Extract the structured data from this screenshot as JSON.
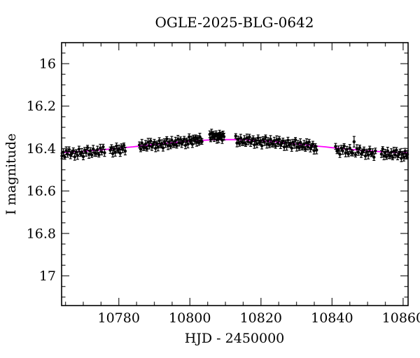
{
  "chart_data": {
    "type": "scatter",
    "title": "OGLE-2025-BLG-0642",
    "xlabel": "HJD - 2450000",
    "ylabel": "I magnitude",
    "x_range": [
      10763.9,
      10861.4
    ],
    "y_range_mag": [
      15.901,
      17.14
    ],
    "y_axis_inverted_magnitudes": true,
    "grid": false,
    "legend": "none",
    "point_color": "#000000",
    "model_color": "#ff00ff",
    "x_ticks": [
      {
        "v": 10780,
        "label": "10780"
      },
      {
        "v": 10800,
        "label": "10800"
      },
      {
        "v": 10820,
        "label": "10820"
      },
      {
        "v": 10840,
        "label": "10840"
      },
      {
        "v": 10860,
        "label": "10860"
      }
    ],
    "x_minor_step": 5,
    "y_ticks": [
      {
        "v": 16.0,
        "label": "16"
      },
      {
        "v": 16.2,
        "label": "16.2"
      },
      {
        "v": 16.4,
        "label": "16.4"
      },
      {
        "v": 16.6,
        "label": "16.6"
      },
      {
        "v": 16.8,
        "label": "16.8"
      },
      {
        "v": 17.0,
        "label": "17"
      }
    ],
    "y_minor_step": 0.05,
    "model_curve": [
      [
        10763.9,
        16.419
      ],
      [
        10766,
        16.417
      ],
      [
        10768,
        16.415
      ],
      [
        10770,
        16.413
      ],
      [
        10772,
        16.41
      ],
      [
        10774,
        16.408
      ],
      [
        10776,
        16.405
      ],
      [
        10778,
        16.402
      ],
      [
        10780,
        16.399
      ],
      [
        10782,
        16.395
      ],
      [
        10784,
        16.392
      ],
      [
        10786,
        16.388
      ],
      [
        10788,
        16.384
      ],
      [
        10790,
        16.381
      ],
      [
        10792,
        16.377
      ],
      [
        10794,
        16.374
      ],
      [
        10796,
        16.371
      ],
      [
        10798,
        16.368
      ],
      [
        10800,
        16.365
      ],
      [
        10802,
        16.363
      ],
      [
        10804,
        16.361
      ],
      [
        10806,
        16.359
      ],
      [
        10808,
        16.3585
      ],
      [
        10810,
        16.358
      ],
      [
        10812,
        16.358
      ],
      [
        10814,
        16.3585
      ],
      [
        10816,
        16.359
      ],
      [
        10818,
        16.361
      ],
      [
        10820,
        16.363
      ],
      [
        10822,
        16.366
      ],
      [
        10824,
        16.368
      ],
      [
        10826,
        16.371
      ],
      [
        10828,
        16.375
      ],
      [
        10830,
        16.378
      ],
      [
        10832,
        16.382
      ],
      [
        10834,
        16.385
      ],
      [
        10836,
        16.389
      ],
      [
        10838,
        16.392
      ],
      [
        10840,
        16.396
      ],
      [
        10842,
        16.399
      ],
      [
        10844,
        16.402
      ],
      [
        10846,
        16.405
      ],
      [
        10848,
        16.408
      ],
      [
        10850,
        16.411
      ],
      [
        10852,
        16.413
      ],
      [
        10854,
        16.415
      ],
      [
        10856,
        16.417
      ],
      [
        10858,
        16.419
      ],
      [
        10860,
        16.42
      ],
      [
        10861.4,
        16.421
      ]
    ],
    "points": [
      [
        10764.0,
        16.435,
        0.013
      ],
      [
        10764.4,
        16.417,
        0.016
      ],
      [
        10764.8,
        16.44,
        0.011
      ],
      [
        10765.2,
        16.41,
        0.018
      ],
      [
        10765.6,
        16.427,
        0.014
      ],
      [
        10766.0,
        16.404,
        0.012
      ],
      [
        10766.4,
        16.431,
        0.017
      ],
      [
        10766.8,
        16.423,
        0.015
      ],
      [
        10767.2,
        16.41,
        0.013
      ],
      [
        10767.6,
        16.439,
        0.016
      ],
      [
        10768.0,
        16.416,
        0.011
      ],
      [
        10768.4,
        16.433,
        0.018
      ],
      [
        10768.8,
        16.403,
        0.014
      ],
      [
        10769.2,
        16.425,
        0.012
      ],
      [
        10769.6,
        16.417,
        0.017
      ],
      [
        10770.0,
        16.438,
        0.015
      ],
      [
        10770.4,
        16.408,
        0.013
      ],
      [
        10770.8,
        16.42,
        0.016
      ],
      [
        10771.2,
        16.396,
        0.011
      ],
      [
        10771.6,
        16.428,
        0.018
      ],
      [
        10772.0,
        16.41,
        0.014
      ],
      [
        10772.4,
        16.43,
        0.012
      ],
      [
        10772.8,
        16.402,
        0.017
      ],
      [
        10773.2,
        16.421,
        0.015
      ],
      [
        10773.6,
        16.424,
        0.013
      ],
      [
        10774.0,
        16.405,
        0.016
      ],
      [
        10774.4,
        16.429,
        0.011
      ],
      [
        10774.8,
        16.398,
        0.018
      ],
      [
        10775.2,
        16.416,
        0.014
      ],
      [
        10775.6,
        16.392,
        0.012
      ],
      [
        10776.0,
        16.42,
        0.017
      ],
      [
        10777.6,
        16.408,
        0.015
      ],
      [
        10777.95,
        16.395,
        0.013
      ],
      [
        10778.3,
        16.424,
        0.016
      ],
      [
        10778.65,
        16.401,
        0.011
      ],
      [
        10779.0,
        16.418,
        0.018
      ],
      [
        10779.35,
        16.388,
        0.014
      ],
      [
        10779.7,
        16.409,
        0.012
      ],
      [
        10780.05,
        16.401,
        0.017
      ],
      [
        10780.4,
        16.422,
        0.015
      ],
      [
        10780.75,
        16.391,
        0.013
      ],
      [
        10781.1,
        16.404,
        0.016
      ],
      [
        10781.45,
        16.385,
        0.011
      ],
      [
        10781.8,
        16.412,
        0.018
      ],
      [
        10785.8,
        16.383,
        0.014
      ],
      [
        10786.15,
        16.403,
        0.012
      ],
      [
        10786.5,
        16.374,
        0.017
      ],
      [
        10786.85,
        16.394,
        0.015
      ],
      [
        10787.2,
        16.396,
        0.013
      ],
      [
        10787.55,
        16.378,
        0.016
      ],
      [
        10787.9,
        16.401,
        0.011
      ],
      [
        10788.25,
        16.37,
        0.018
      ],
      [
        10788.6,
        16.388,
        0.014
      ],
      [
        10788.95,
        16.364,
        0.012
      ],
      [
        10789.3,
        16.392,
        0.017
      ],
      [
        10789.65,
        16.383,
        0.015
      ],
      [
        10790.0,
        16.37,
        0.013
      ],
      [
        10790.35,
        16.399,
        0.016
      ],
      [
        10790.7,
        16.376,
        0.011
      ],
      [
        10791.05,
        16.393,
        0.018
      ],
      [
        10791.4,
        16.363,
        0.014
      ],
      [
        10791.75,
        16.385,
        0.012
      ],
      [
        10792.1,
        16.376,
        0.017
      ],
      [
        10792.45,
        16.397,
        0.015
      ],
      [
        10792.8,
        16.367,
        0.013
      ],
      [
        10793.15,
        16.379,
        0.016
      ],
      [
        10793.5,
        16.355,
        0.011
      ],
      [
        10793.85,
        16.387,
        0.018
      ],
      [
        10794.2,
        16.368,
        0.014
      ],
      [
        10794.55,
        16.389,
        0.012
      ],
      [
        10794.9,
        16.36,
        0.017
      ],
      [
        10795.25,
        16.38,
        0.015
      ],
      [
        10795.6,
        16.382,
        0.013
      ],
      [
        10795.95,
        16.363,
        0.016
      ],
      [
        10796.3,
        16.387,
        0.011
      ],
      [
        10796.65,
        16.356,
        0.018
      ],
      [
        10797.0,
        16.374,
        0.014
      ],
      [
        10797.35,
        16.357,
        0.012
      ],
      [
        10797.7,
        16.378,
        0.017
      ],
      [
        10798.05,
        16.369,
        0.015
      ],
      [
        10798.4,
        16.356,
        0.013
      ],
      [
        10798.75,
        16.385,
        0.016
      ],
      [
        10799.1,
        16.362,
        0.011
      ],
      [
        10799.45,
        16.379,
        0.018
      ],
      [
        10799.8,
        16.345,
        0.014
      ],
      [
        10800.1,
        16.367,
        0.012
      ],
      [
        10800.4,
        16.359,
        0.017
      ],
      [
        10800.7,
        16.38,
        0.015
      ],
      [
        10801.0,
        16.35,
        0.013
      ],
      [
        10801.3,
        16.363,
        0.016
      ],
      [
        10801.6,
        16.347,
        0.011
      ],
      [
        10801.9,
        16.371,
        0.018
      ],
      [
        10802.2,
        16.353,
        0.014
      ],
      [
        10802.5,
        16.373,
        0.012
      ],
      [
        10802.8,
        16.345,
        0.017
      ],
      [
        10803.1,
        16.365,
        0.015
      ],
      [
        10803.4,
        16.367,
        0.013
      ],
      [
        10805.6,
        16.333,
        0.016
      ],
      [
        10805.85,
        16.357,
        0.011
      ],
      [
        10806.1,
        16.327,
        0.018
      ],
      [
        10806.35,
        16.345,
        0.014
      ],
      [
        10806.6,
        16.331,
        0.012
      ],
      [
        10806.85,
        16.35,
        0.017
      ],
      [
        10807.1,
        16.342,
        0.015
      ],
      [
        10807.35,
        16.33,
        0.013
      ],
      [
        10807.6,
        16.359,
        0.016
      ],
      [
        10807.85,
        16.337,
        0.011
      ],
      [
        10808.1,
        16.354,
        0.018
      ],
      [
        10808.35,
        16.328,
        0.014
      ],
      [
        10808.6,
        16.347,
        0.012
      ],
      [
        10808.85,
        16.339,
        0.017
      ],
      [
        10809.1,
        16.361,
        0.015
      ],
      [
        10809.35,
        16.331,
        0.013
      ],
      [
        10809.6,
        16.344,
        0.016
      ],
      [
        10812.9,
        16.341,
        0.011
      ],
      [
        10813.25,
        16.374,
        0.018
      ],
      [
        10813.6,
        16.356,
        0.014
      ],
      [
        10813.95,
        16.377,
        0.012
      ],
      [
        10814.3,
        16.35,
        0.017
      ],
      [
        10814.65,
        16.37,
        0.015
      ],
      [
        10815.0,
        16.373,
        0.013
      ],
      [
        10815.35,
        16.355,
        0.016
      ],
      [
        10815.7,
        16.379,
        0.011
      ],
      [
        10816.05,
        16.35,
        0.018
      ],
      [
        10816.4,
        16.368,
        0.014
      ],
      [
        10816.75,
        16.345,
        0.012
      ],
      [
        10817.1,
        16.373,
        0.017
      ],
      [
        10817.45,
        16.365,
        0.015
      ],
      [
        10817.8,
        16.353,
        0.013
      ],
      [
        10818.15,
        16.383,
        0.016
      ],
      [
        10818.5,
        16.361,
        0.011
      ],
      [
        10818.85,
        16.378,
        0.018
      ],
      [
        10819.2,
        16.35,
        0.014
      ],
      [
        10819.55,
        16.372,
        0.012
      ],
      [
        10819.9,
        16.364,
        0.017
      ],
      [
        10820.25,
        16.387,
        0.015
      ],
      [
        10820.6,
        16.357,
        0.013
      ],
      [
        10820.95,
        16.37,
        0.016
      ],
      [
        10821.3,
        16.347,
        0.011
      ],
      [
        10821.65,
        16.38,
        0.018
      ],
      [
        10822.0,
        16.363,
        0.014
      ],
      [
        10822.35,
        16.384,
        0.012
      ],
      [
        10822.7,
        16.356,
        0.017
      ],
      [
        10823.05,
        16.377,
        0.015
      ],
      [
        10823.4,
        16.38,
        0.013
      ],
      [
        10823.75,
        16.363,
        0.016
      ],
      [
        10824.1,
        16.388,
        0.011
      ],
      [
        10824.45,
        16.358,
        0.018
      ],
      [
        10824.8,
        16.376,
        0.014
      ],
      [
        10825.15,
        16.355,
        0.012
      ],
      [
        10825.5,
        16.383,
        0.017
      ],
      [
        10825.85,
        16.375,
        0.015
      ],
      [
        10826.2,
        16.364,
        0.013
      ],
      [
        10826.55,
        16.393,
        0.016
      ],
      [
        10826.9,
        16.371,
        0.011
      ],
      [
        10827.25,
        16.39,
        0.018
      ],
      [
        10827.6,
        16.361,
        0.014
      ],
      [
        10827.95,
        16.383,
        0.012
      ],
      [
        10828.3,
        16.376,
        0.017
      ],
      [
        10828.65,
        16.398,
        0.015
      ],
      [
        10829.0,
        16.37,
        0.013
      ],
      [
        10829.35,
        16.383,
        0.016
      ],
      [
        10829.7,
        16.359,
        0.011
      ],
      [
        10830.05,
        16.394,
        0.018
      ],
      [
        10830.4,
        16.376,
        0.014
      ],
      [
        10830.75,
        16.397,
        0.012
      ],
      [
        10831.1,
        16.371,
        0.017
      ],
      [
        10831.45,
        16.391,
        0.015
      ],
      [
        10831.8,
        16.394,
        0.013
      ],
      [
        10832.15,
        16.378,
        0.016
      ],
      [
        10832.5,
        16.402,
        0.011
      ],
      [
        10832.85,
        16.372,
        0.018
      ],
      [
        10833.2,
        16.392,
        0.014
      ],
      [
        10833.55,
        16.369,
        0.012
      ],
      [
        10833.9,
        16.399,
        0.017
      ],
      [
        10834.25,
        16.391,
        0.015
      ],
      [
        10834.6,
        16.379,
        0.013
      ],
      [
        10834.95,
        16.41,
        0.016
      ],
      [
        10835.3,
        16.388,
        0.011
      ],
      [
        10835.65,
        16.407,
        0.018
      ],
      [
        10841.0,
        16.39,
        0.014
      ],
      [
        10841.4,
        16.412,
        0.012
      ],
      [
        10841.8,
        16.405,
        0.017
      ],
      [
        10842.2,
        16.427,
        0.015
      ],
      [
        10842.6,
        16.398,
        0.013
      ],
      [
        10843.0,
        16.411,
        0.016
      ],
      [
        10843.4,
        16.388,
        0.011
      ],
      [
        10843.8,
        16.421,
        0.018
      ],
      [
        10844.2,
        16.404,
        0.014
      ],
      [
        10844.6,
        16.426,
        0.012
      ],
      [
        10845.0,
        16.398,
        0.017
      ],
      [
        10845.4,
        16.419,
        0.015
      ],
      [
        10845.8,
        16.422,
        0.013
      ],
      [
        10846.2,
        16.368,
        0.025
      ],
      [
        10846.6,
        16.429,
        0.011
      ],
      [
        10847.0,
        16.4,
        0.018
      ],
      [
        10847.4,
        16.418,
        0.014
      ],
      [
        10847.8,
        16.396,
        0.012
      ],
      [
        10848.2,
        16.425,
        0.017
      ],
      [
        10848.6,
        16.417,
        0.015
      ],
      [
        10849.0,
        16.406,
        0.013
      ],
      [
        10849.4,
        16.435,
        0.016
      ],
      [
        10849.8,
        16.414,
        0.011
      ],
      [
        10850.2,
        16.431,
        0.018
      ],
      [
        10850.6,
        16.403,
        0.014
      ],
      [
        10851.0,
        16.426,
        0.012
      ],
      [
        10851.4,
        16.418,
        0.017
      ],
      [
        10851.8,
        16.441,
        0.015
      ],
      [
        10852.2,
        16.411,
        0.013
      ],
      [
        10853.9,
        16.426,
        0.016
      ],
      [
        10854.25,
        16.402,
        0.011
      ],
      [
        10854.6,
        16.435,
        0.018
      ],
      [
        10854.95,
        16.418,
        0.014
      ],
      [
        10855.3,
        16.439,
        0.012
      ],
      [
        10855.65,
        16.411,
        0.017
      ],
      [
        10856.0,
        16.432,
        0.015
      ],
      [
        10856.35,
        16.435,
        0.013
      ],
      [
        10856.7,
        16.417,
        0.016
      ],
      [
        10857.05,
        16.442,
        0.011
      ],
      [
        10857.4,
        16.412,
        0.018
      ],
      [
        10857.75,
        16.43,
        0.014
      ],
      [
        10858.1,
        16.407,
        0.012
      ],
      [
        10858.45,
        16.436,
        0.017
      ],
      [
        10858.8,
        16.428,
        0.015
      ],
      [
        10859.15,
        16.416,
        0.013
      ],
      [
        10859.5,
        16.446,
        0.016
      ],
      [
        10859.85,
        16.424,
        0.011
      ],
      [
        10860.2,
        16.441,
        0.018
      ],
      [
        10860.55,
        16.413,
        0.014
      ],
      [
        10860.9,
        16.435,
        0.012
      ],
      [
        10861.2,
        16.427,
        0.017
      ]
    ]
  }
}
